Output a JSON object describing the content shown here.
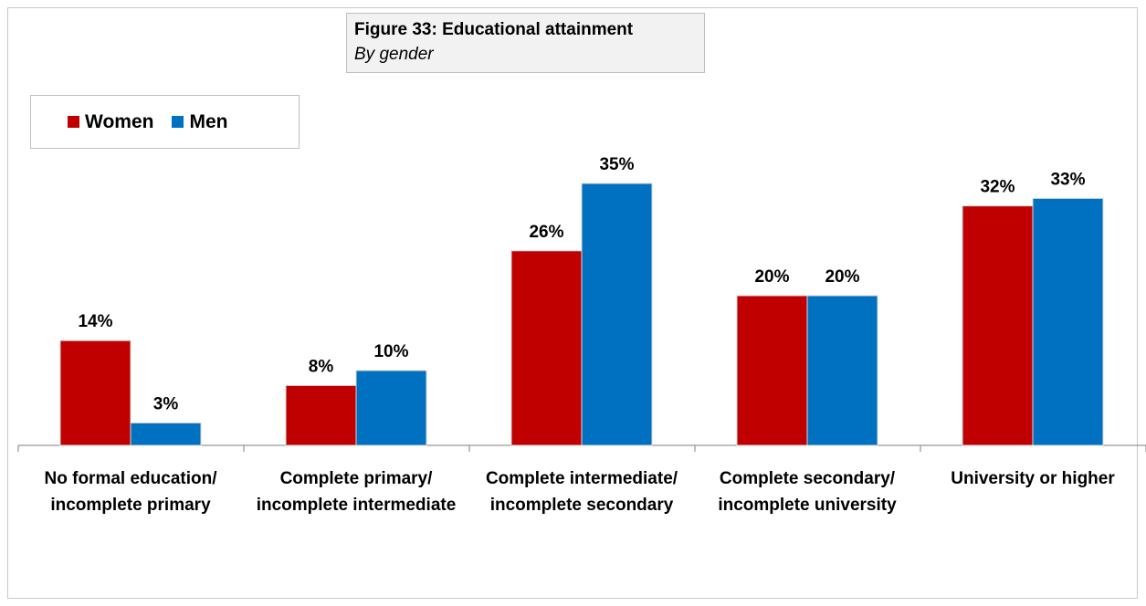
{
  "title": "Figure 33: Educational attainment",
  "subtitle": "By gender",
  "colors": {
    "women": "#c00000",
    "men": "#0070c0"
  },
  "chart_data": {
    "type": "bar",
    "title": "Figure 33: Educational attainment",
    "subtitle": "By gender",
    "categories": [
      "No formal education/ incomplete primary",
      "Complete primary/ incomplete intermediate",
      "Complete intermediate/ incomplete secondary",
      "Complete secondary/ incomplete university",
      "University or higher"
    ],
    "series": [
      {
        "name": "Women",
        "values": [
          14,
          8,
          26,
          20,
          32
        ],
        "labels": [
          "14%",
          "8%",
          "26%",
          "20%",
          "32%"
        ]
      },
      {
        "name": "Men",
        "values": [
          3,
          10,
          35,
          20,
          33
        ],
        "labels": [
          "3%",
          "10%",
          "35%",
          "20%",
          "33%"
        ]
      }
    ],
    "ylim": [
      0,
      45
    ],
    "unit": "%",
    "legend": "top-left",
    "grid": false
  }
}
